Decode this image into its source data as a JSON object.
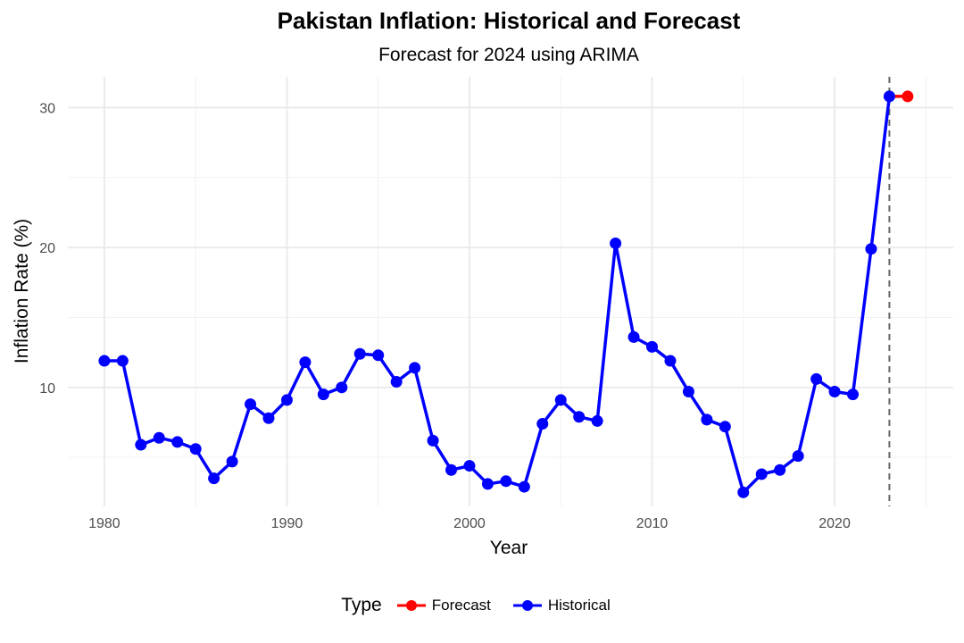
{
  "chart_data": {
    "type": "line",
    "title": "Pakistan Inflation: Historical and Forecast",
    "subtitle": "Forecast for 2024 using ARIMA",
    "xlabel": "Year",
    "ylabel": "Inflation Rate (%)",
    "xlim": [
      1978,
      2026.5
    ],
    "ylim": [
      1.5,
      32.2
    ],
    "x_ticks": [
      1980,
      1990,
      2000,
      2010,
      2020
    ],
    "y_ticks": [
      10,
      20,
      30
    ],
    "grid": true,
    "vline_x": 2023,
    "legend": {
      "title": "Type",
      "position": "bottom"
    },
    "series": [
      {
        "name": "Historical",
        "color": "#0000ff",
        "x": [
          1980,
          1981,
          1982,
          1983,
          1984,
          1985,
          1986,
          1987,
          1988,
          1989,
          1990,
          1991,
          1992,
          1993,
          1994,
          1995,
          1996,
          1997,
          1998,
          1999,
          2000,
          2001,
          2002,
          2003,
          2004,
          2005,
          2006,
          2007,
          2008,
          2009,
          2010,
          2011,
          2012,
          2013,
          2014,
          2015,
          2016,
          2017,
          2018,
          2019,
          2020,
          2021,
          2022,
          2023
        ],
        "y": [
          11.9,
          11.9,
          5.9,
          6.4,
          6.1,
          5.6,
          3.5,
          4.7,
          8.8,
          7.8,
          9.1,
          11.8,
          9.5,
          10.0,
          12.4,
          12.3,
          10.4,
          11.4,
          6.2,
          4.1,
          4.4,
          3.1,
          3.3,
          2.9,
          7.4,
          9.1,
          7.9,
          7.6,
          20.3,
          13.6,
          12.9,
          11.9,
          9.7,
          7.7,
          7.2,
          2.5,
          3.8,
          4.1,
          5.1,
          10.6,
          9.7,
          9.5,
          19.9,
          30.8
        ]
      },
      {
        "name": "Forecast",
        "color": "#ff0000",
        "x": [
          2023,
          2024
        ],
        "y": [
          30.8,
          30.8
        ]
      }
    ]
  },
  "legend": {
    "title": "Type",
    "items": [
      {
        "label": "Forecast",
        "color": "#ff0000"
      },
      {
        "label": "Historical",
        "color": "#0000ff"
      }
    ]
  }
}
